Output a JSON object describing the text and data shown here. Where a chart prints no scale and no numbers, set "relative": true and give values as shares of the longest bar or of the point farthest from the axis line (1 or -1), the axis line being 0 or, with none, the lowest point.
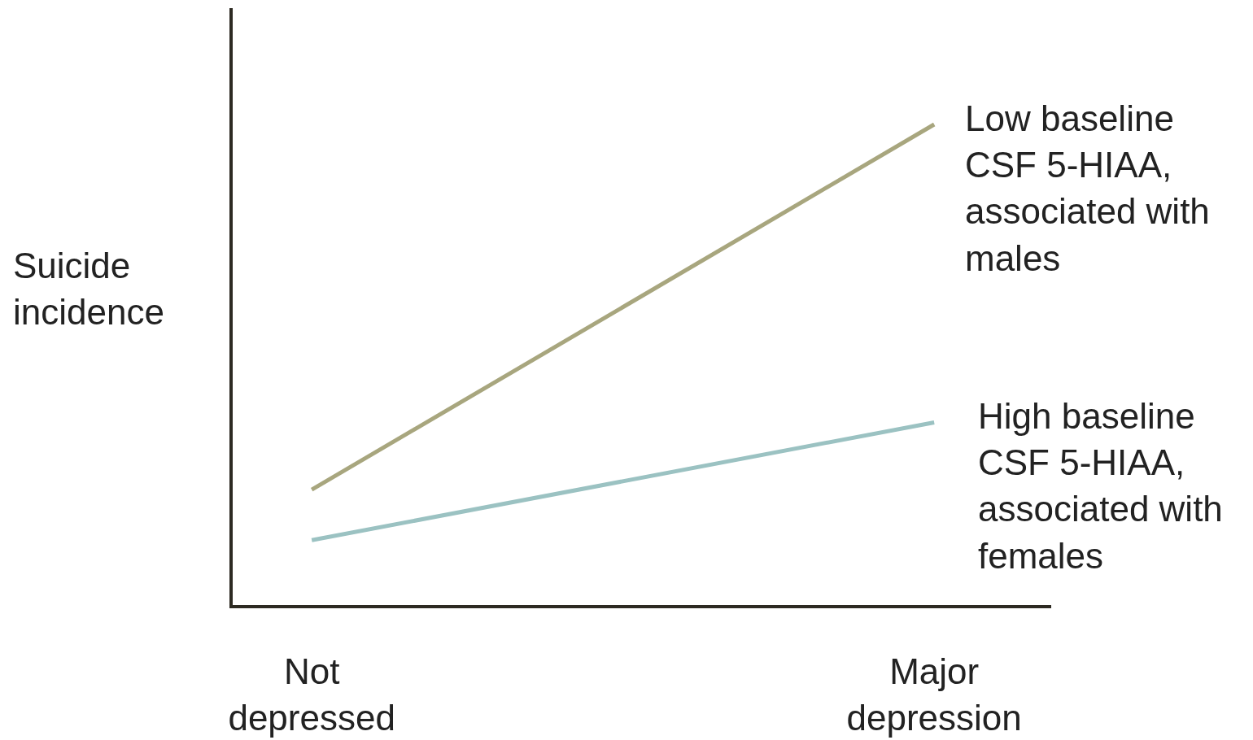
{
  "chart_data": {
    "type": "line",
    "ylabel": "Suicide incidence",
    "categories": [
      "Not depressed",
      "Major depression"
    ],
    "relative": true,
    "marker": "none",
    "grid": false,
    "legend": false,
    "series": [
      {
        "name": "Low baseline CSF 5-HIAA, associated with males",
        "color": "#a8a67e",
        "values": [
          0.24,
          1
        ]
      },
      {
        "name": "High baseline CSF 5-HIAA, associated with females",
        "color": "#9bc2c2",
        "values": [
          0.135,
          0.38
        ]
      }
    ]
  }
}
